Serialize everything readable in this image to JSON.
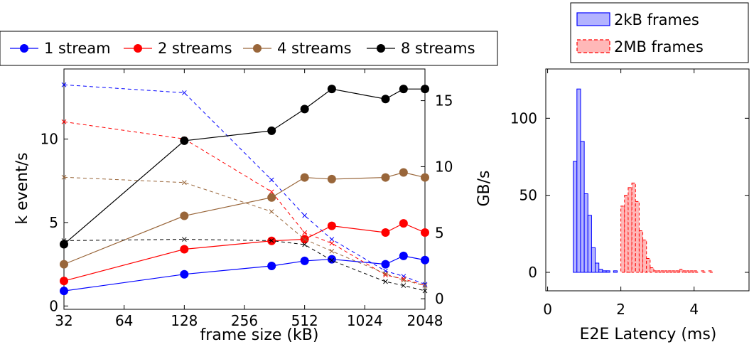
{
  "chart_data": [
    {
      "type": "line",
      "xlabel": "frame size (kB)",
      "ylabel": "k event/s",
      "y2label": "GB/s",
      "x_scale": "log2",
      "x_ticks": [
        32,
        64,
        128,
        256,
        512,
        1024,
        2048
      ],
      "x_tick_labels": [
        "32",
        "64",
        "128",
        "256",
        "512",
        "1024",
        "2048"
      ],
      "xlim": [
        32,
        2048
      ],
      "ylim": [
        -0.2,
        14.2
      ],
      "y_ticks": [
        0,
        5,
        10
      ],
      "y2lim": [
        -0.8,
        17.4
      ],
      "y2_ticks": [
        0,
        5,
        10,
        15
      ],
      "grid": false,
      "legend": "top, outside the plot",
      "x": [
        32,
        128,
        350,
        512,
        700,
        1300,
        1600,
        2048
      ],
      "series": [
        {
          "name": "1 stream",
          "color": "#0000ff",
          "event_rate": [
            0.9,
            1.9,
            2.4,
            2.7,
            2.8,
            2.5,
            3.0,
            2.75
          ],
          "throughput": [
            16.2,
            15.6,
            9.0,
            6.3,
            4.5,
            2.1,
            1.7,
            1.1
          ]
        },
        {
          "name": "2 streams",
          "color": "#ff0000",
          "event_rate": [
            1.5,
            3.4,
            3.9,
            4.0,
            4.8,
            4.4,
            4.95,
            4.4
          ],
          "throughput": [
            13.4,
            12.1,
            8.1,
            5.0,
            4.2,
            1.8,
            1.5,
            1.0
          ]
        },
        {
          "name": "4 streams",
          "color": "#99663a",
          "event_rate": [
            2.5,
            5.4,
            6.5,
            7.7,
            7.6,
            7.7,
            8.0,
            7.7
          ],
          "throughput": [
            9.2,
            8.8,
            6.6,
            4.5,
            3.6,
            1.9,
            1.4,
            1.0
          ]
        },
        {
          "name": "8 streams",
          "color": "#000000",
          "event_rate": [
            3.7,
            9.9,
            10.5,
            11.8,
            13.0,
            12.4,
            13.0,
            13.0
          ],
          "throughput": [
            4.4,
            4.5,
            4.4,
            4.1,
            2.9,
            1.3,
            1.0,
            0.6
          ]
        }
      ]
    },
    {
      "type": "bar",
      "subtype": "histogram",
      "xlabel": "E2E Latency (ms)",
      "xlim": [
        -0.05,
        5.5
      ],
      "x_ticks": [
        0,
        2,
        4
      ],
      "ylim": [
        -12,
        132
      ],
      "y_ticks": [
        0,
        50,
        100
      ],
      "legend": "top, outside the plot",
      "series": [
        {
          "name": "2kB frames",
          "color": "#0000ff",
          "style": "solid",
          "bin_width": 0.1,
          "bin_starts": [
            0.7,
            0.8,
            0.9,
            1.0,
            1.1,
            1.2,
            1.3,
            1.4,
            1.5,
            1.6,
            1.7,
            1.8
          ],
          "counts": [
            72,
            119,
            85,
            51,
            37,
            16,
            6,
            2,
            1,
            1,
            0,
            1
          ]
        },
        {
          "name": "2MB frames",
          "color": "#ff0000",
          "style": "dashed",
          "bin_width": 0.1,
          "bin_starts": [
            2.0,
            2.1,
            2.2,
            2.3,
            2.4,
            2.5,
            2.6,
            2.7,
            2.8,
            2.9,
            3.0,
            3.1,
            3.2,
            3.3,
            3.4,
            3.5,
            3.6,
            3.7,
            3.8,
            3.9,
            4.0,
            4.1,
            4.2,
            4.3,
            4.4,
            4.5,
            4.6,
            4.7,
            4.8,
            4.9,
            5.0
          ],
          "counts": [
            43,
            50,
            55,
            58,
            46,
            27,
            21,
            9,
            3,
            1,
            1,
            1,
            1,
            1,
            1,
            1,
            2,
            1,
            1,
            1,
            1,
            0,
            1,
            0,
            1,
            0,
            0,
            0,
            0,
            0,
            0
          ]
        }
      ]
    }
  ]
}
